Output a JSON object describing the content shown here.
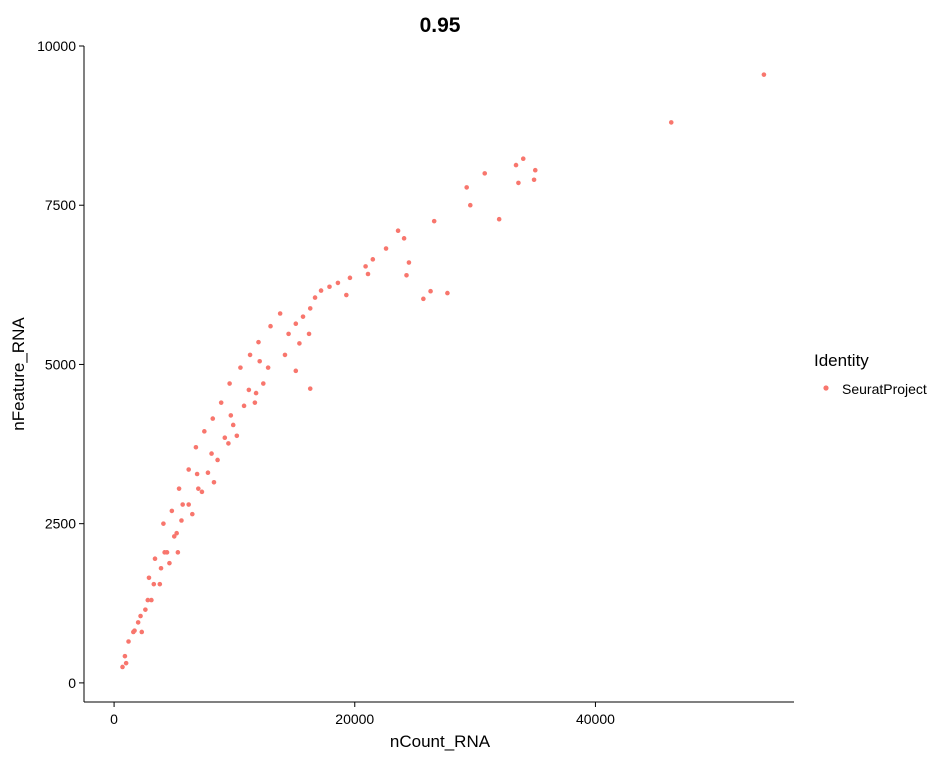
{
  "chart_data": {
    "type": "scatter",
    "title": "0.95",
    "xlabel": "nCount_RNA",
    "ylabel": "nFeature_RNA",
    "xlim": [
      -2500,
      56500
    ],
    "ylim": [
      -300,
      10000
    ],
    "x_ticks": [
      0,
      20000,
      40000
    ],
    "x_tick_labels": [
      "0",
      "20000",
      "40000"
    ],
    "y_ticks": [
      0,
      2500,
      5000,
      7500,
      10000
    ],
    "y_tick_labels": [
      "0",
      "2500",
      "5000",
      "7500",
      "10000"
    ],
    "grid": false,
    "legend": {
      "title": "Identity",
      "position": "right",
      "entries": [
        {
          "label": "SeuratProject",
          "color": "#F8766D"
        }
      ]
    },
    "series": [
      {
        "name": "SeuratProject",
        "color": "#F8766D",
        "points": [
          [
            54000,
            9550
          ],
          [
            46300,
            8800
          ],
          [
            34000,
            8230
          ],
          [
            33400,
            8130
          ],
          [
            35000,
            8050
          ],
          [
            30800,
            8000
          ],
          [
            33600,
            7850
          ],
          [
            34900,
            7900
          ],
          [
            29300,
            7780
          ],
          [
            29600,
            7500
          ],
          [
            32000,
            7280
          ],
          [
            26600,
            7250
          ],
          [
            23600,
            7100
          ],
          [
            24100,
            6980
          ],
          [
            22600,
            6820
          ],
          [
            21500,
            6650
          ],
          [
            20900,
            6540
          ],
          [
            21100,
            6420
          ],
          [
            24500,
            6600
          ],
          [
            24300,
            6400
          ],
          [
            26300,
            6150
          ],
          [
            27700,
            6120
          ],
          [
            25700,
            6030
          ],
          [
            19600,
            6360
          ],
          [
            18600,
            6280
          ],
          [
            19300,
            6090
          ],
          [
            17900,
            6220
          ],
          [
            17200,
            6160
          ],
          [
            16700,
            6050
          ],
          [
            16300,
            5880
          ],
          [
            15700,
            5750
          ],
          [
            15100,
            5640
          ],
          [
            14500,
            5480
          ],
          [
            16200,
            5480
          ],
          [
            15400,
            5330
          ],
          [
            14200,
            5150
          ],
          [
            15100,
            4900
          ],
          [
            16300,
            4620
          ],
          [
            12100,
            5050
          ],
          [
            12400,
            4700
          ],
          [
            11700,
            4400
          ],
          [
            11200,
            4600
          ],
          [
            9700,
            4200
          ],
          [
            9500,
            3760
          ],
          [
            10200,
            3880
          ],
          [
            8100,
            3600
          ],
          [
            8300,
            3150
          ],
          [
            6900,
            3280
          ],
          [
            7300,
            3000
          ],
          [
            6500,
            2650
          ],
          [
            5700,
            2800
          ],
          [
            5200,
            2350
          ],
          [
            5300,
            2050
          ],
          [
            4600,
            1880
          ],
          [
            4200,
            2050
          ],
          [
            3800,
            1550
          ],
          [
            3100,
            1300
          ],
          [
            2600,
            1150
          ],
          [
            2300,
            800
          ],
          [
            1700,
            820
          ],
          [
            900,
            420
          ],
          [
            1000,
            310
          ],
          [
            700,
            250
          ],
          [
            1200,
            650
          ],
          [
            2000,
            950
          ],
          [
            2900,
            1650
          ],
          [
            3400,
            1950
          ],
          [
            4100,
            2500
          ],
          [
            4800,
            2700
          ],
          [
            5400,
            3050
          ],
          [
            6200,
            3350
          ],
          [
            6800,
            3700
          ],
          [
            7500,
            3950
          ],
          [
            8200,
            4150
          ],
          [
            8900,
            4400
          ],
          [
            9600,
            4700
          ],
          [
            10500,
            4950
          ],
          [
            11300,
            5150
          ],
          [
            12000,
            5350
          ],
          [
            13000,
            5600
          ],
          [
            13800,
            5800
          ],
          [
            12800,
            4950
          ],
          [
            11800,
            4550
          ],
          [
            10800,
            4350
          ],
          [
            9900,
            4050
          ],
          [
            9200,
            3850
          ],
          [
            8600,
            3500
          ],
          [
            7800,
            3300
          ],
          [
            7000,
            3050
          ],
          [
            6200,
            2800
          ],
          [
            5600,
            2550
          ],
          [
            5000,
            2300
          ],
          [
            4400,
            2050
          ],
          [
            3900,
            1800
          ],
          [
            3300,
            1550
          ],
          [
            2800,
            1300
          ],
          [
            2200,
            1050
          ],
          [
            1600,
            800
          ]
        ]
      }
    ]
  }
}
